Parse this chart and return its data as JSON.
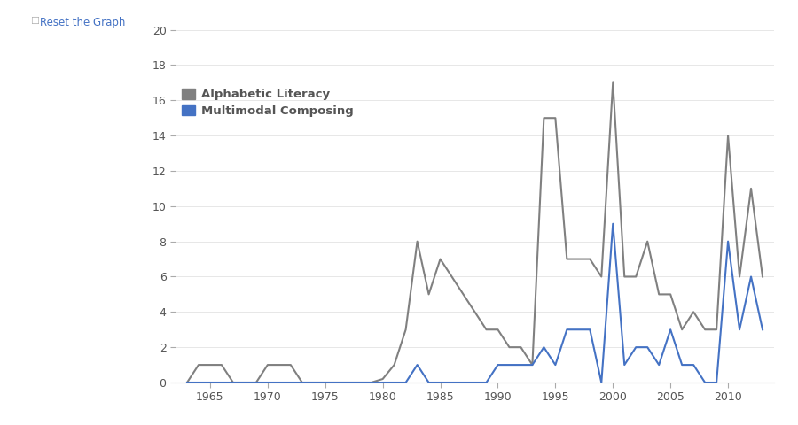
{
  "alphabetic_years": [
    1963,
    1964,
    1965,
    1966,
    1967,
    1968,
    1969,
    1970,
    1971,
    1972,
    1973,
    1974,
    1975,
    1976,
    1977,
    1978,
    1979,
    1980,
    1981,
    1982,
    1983,
    1984,
    1985,
    1986,
    1987,
    1988,
    1989,
    1990,
    1991,
    1992,
    1993,
    1994,
    1995,
    1996,
    1997,
    1998,
    1999,
    2000,
    2001,
    2002,
    2003,
    2004,
    2005,
    2006,
    2007,
    2008,
    2009,
    2010,
    2011,
    2012,
    2013
  ],
  "alphabetic_values": [
    0,
    1,
    1,
    1,
    0,
    0,
    0,
    1,
    1,
    1,
    0,
    0,
    0,
    0,
    0,
    0,
    0,
    0.2,
    1,
    3,
    8,
    5,
    7,
    6,
    5,
    4,
    3,
    3,
    2,
    2,
    1,
    15,
    15,
    7,
    7,
    7,
    6,
    17,
    6,
    6,
    8,
    5,
    5,
    3,
    4,
    3,
    3,
    14,
    6,
    11,
    6
  ],
  "multimodal_years": [
    1963,
    1964,
    1965,
    1966,
    1967,
    1968,
    1969,
    1970,
    1971,
    1972,
    1973,
    1974,
    1975,
    1976,
    1977,
    1978,
    1979,
    1980,
    1981,
    1982,
    1983,
    1984,
    1985,
    1986,
    1987,
    1988,
    1989,
    1990,
    1991,
    1992,
    1993,
    1994,
    1995,
    1996,
    1997,
    1998,
    1999,
    2000,
    2001,
    2002,
    2003,
    2004,
    2005,
    2006,
    2007,
    2008,
    2009,
    2010,
    2011,
    2012,
    2013
  ],
  "multimodal_values": [
    0,
    0,
    0,
    0,
    0,
    0,
    0,
    0,
    0,
    0,
    0,
    0,
    0,
    0,
    0,
    0,
    0,
    0,
    0,
    0,
    1,
    0,
    0,
    0,
    0,
    0,
    0,
    1,
    1,
    1,
    1,
    2,
    1,
    3,
    3,
    3,
    0,
    9,
    1,
    2,
    2,
    1,
    3,
    1,
    1,
    0,
    0,
    8,
    3,
    6,
    3
  ],
  "alphabetic_color": "#808080",
  "multimodal_color": "#4472c4",
  "xlim": [
    1962,
    2014
  ],
  "ylim": [
    0,
    20
  ],
  "xticks": [
    1965,
    1970,
    1975,
    1980,
    1985,
    1990,
    1995,
    2000,
    2005,
    2010
  ],
  "yticks": [
    0,
    2,
    4,
    6,
    8,
    10,
    12,
    14,
    16,
    18,
    20
  ],
  "legend_labels": [
    "Alphabetic Literacy",
    "Multimodal Composing"
  ],
  "legend_colors": [
    "#808080",
    "#4472c4"
  ],
  "reset_label": "Reset the Graph",
  "bg_color": "#ffffff",
  "line_width": 1.5
}
